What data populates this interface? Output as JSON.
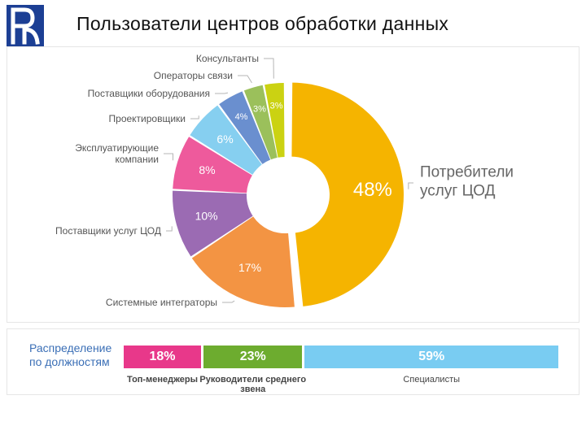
{
  "header": {
    "title": "Пользователи центров обработки данных"
  },
  "chart_data": [
    {
      "type": "pie",
      "variant": "donut",
      "categories": [
        "Потребители услуг ЦОД",
        "Системные интеграторы",
        "Поставщики услуг ЦОД",
        "Эксплуатирующие компании",
        "Проектировщики",
        "Поставщики оборудования",
        "Операторы связи",
        "Консультанты"
      ],
      "values": [
        48,
        17,
        10,
        8,
        6,
        4,
        3,
        3
      ],
      "value_labels": [
        "48%",
        "17%",
        "10%",
        "8%",
        "6%",
        "4%",
        "3%",
        "3%"
      ],
      "colors": [
        "#f5b400",
        "#f39443",
        "#9b6bb3",
        "#ee5a9c",
        "#86cff0",
        "#6a8fcf",
        "#9bc05b",
        "#cbd212"
      ],
      "label_lines": [
        [
          "Потребители",
          "услуг ЦОД"
        ],
        [
          "Системные интеграторы"
        ],
        [
          "Поставщики услуг ЦОД"
        ],
        [
          "Эксплуатирующие",
          "компании"
        ],
        [
          "Проектировщики"
        ],
        [
          "Поставщики оборудования"
        ],
        [
          "Операторы связи"
        ],
        [
          "Консультанты"
        ]
      ]
    },
    {
      "type": "bar",
      "variant": "stacked-100",
      "title": "Распределение по должностям",
      "categories": [
        "Топ-менеджеры",
        "Руководители среднего звена",
        "Специалисты"
      ],
      "values": [
        18,
        23,
        59
      ],
      "value_labels": [
        "18%",
        "23%",
        "59%"
      ],
      "colors": [
        "#e8388a",
        "#6dac2f",
        "#79ccf2"
      ]
    }
  ]
}
